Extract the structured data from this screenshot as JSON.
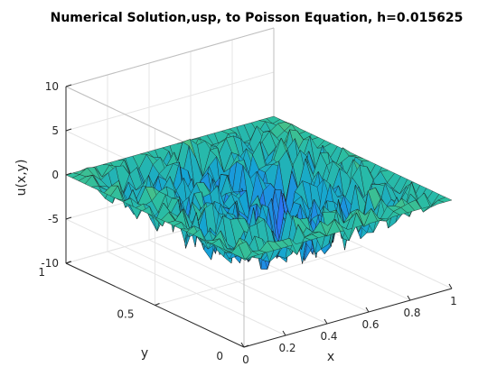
{
  "chart_data": {
    "type": "surface",
    "title": "Numerical Solution,usp, to Poisson Equation, h=0.015625",
    "xlabel": "x",
    "ylabel": "y",
    "zlabel": "u(x,y)",
    "xlim": [
      0,
      1
    ],
    "ylim": [
      0,
      1
    ],
    "zlim": [
      -10,
      10
    ],
    "x_ticks": [
      "0",
      "0.2",
      "0.4",
      "0.6",
      "0.8",
      "1"
    ],
    "y_ticks": [
      "0",
      "0.5",
      "1"
    ],
    "z_ticks": [
      "10",
      "5",
      "0",
      "-5",
      "-10"
    ],
    "x_tick_values": [
      0,
      0.2,
      0.4,
      0.6,
      0.8,
      1
    ],
    "y_tick_values": [
      0,
      0.5,
      1
    ],
    "z_tick_values": [
      10,
      5,
      0,
      -5,
      -10
    ],
    "grid": true,
    "colormap": [
      "#3e26a8",
      "#2c73f4",
      "#14a4d4",
      "#2dbf9f",
      "#a3c33f",
      "#e4c03a",
      "#f9e721"
    ],
    "surface_description_values": {
      "boundary_value": 0,
      "smooth_component_amplitude": -4,
      "noise_amplitude": 4,
      "grid_points_per_side": 65
    }
  }
}
